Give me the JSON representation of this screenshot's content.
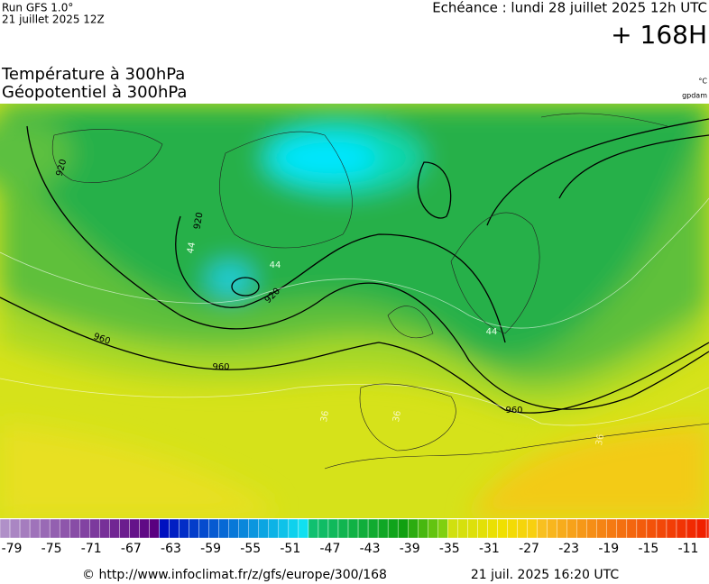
{
  "header": {
    "run": "Run GFS 1.0°",
    "run_date": "21 juillet 2025 12Z",
    "valid": "Echéance : lundi 28 juillet 2025 12h UTC",
    "lead": "+ 168H",
    "title_1": "Température à 300hPa",
    "title_2": "Géopotentiel à 300hPa",
    "unit_1": "°C",
    "unit_2": "gpdam"
  },
  "map": {
    "contour_labels": [
      920,
      920,
      920,
      960,
      960,
      960,
      44,
      44,
      44,
      36,
      36,
      36
    ]
  },
  "colorbar": {
    "ticks": [
      -79,
      -75,
      -71,
      -67,
      -63,
      -59,
      -55,
      -51,
      -47,
      -43,
      -39,
      -35,
      -31,
      -27,
      -23,
      -19,
      -15,
      -11
    ]
  },
  "footer": {
    "url": "© http://www.infoclimat.fr/z/gfs/europe/300/168",
    "stamp": "21 juil. 2025 16:20 UTC"
  }
}
